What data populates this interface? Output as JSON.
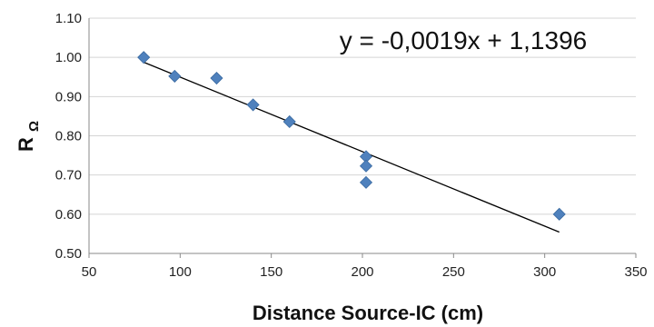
{
  "chart_data": {
    "type": "scatter",
    "title": "",
    "xlabel": "Distance Source-IC (cm)",
    "ylabel": "R",
    "ylabel_subscript": "Ω",
    "xlim": [
      50,
      350
    ],
    "ylim": [
      0.5,
      1.1
    ],
    "xticks": [
      50,
      100,
      150,
      200,
      250,
      300,
      350
    ],
    "yticks": [
      0.5,
      0.6,
      0.7,
      0.8,
      0.9,
      1.0,
      1.1
    ],
    "xtick_labels": [
      "50",
      "100",
      "150",
      "200",
      "250",
      "300",
      "350"
    ],
    "ytick_labels": [
      "0.50",
      "0.60",
      "0.70",
      "0.80",
      "0.90",
      "1.00",
      "1.10"
    ],
    "grid": "horizontal",
    "legend": "none",
    "series": [
      {
        "marker": "diamond",
        "color": "#4f81bd",
        "x": [
          80,
          97,
          120,
          140,
          160,
          202,
          202,
          202,
          308
        ],
        "y": [
          1.0,
          0.952,
          0.947,
          0.879,
          0.836,
          0.747,
          0.723,
          0.681,
          0.6
        ]
      }
    ],
    "trendline": {
      "type": "linear",
      "slope": -0.0019,
      "intercept": 1.1396,
      "x_range": [
        80,
        308
      ],
      "color": "#000000"
    },
    "annotation": {
      "text": "y = -0,0019x + 1,1396"
    }
  }
}
